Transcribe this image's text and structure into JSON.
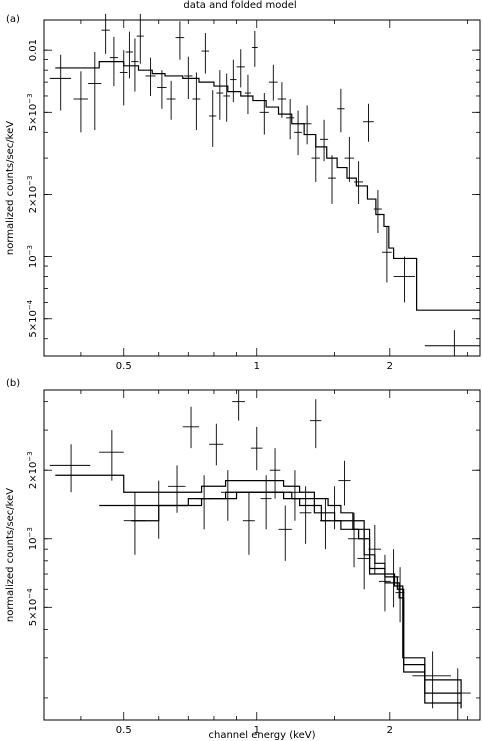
{
  "title": "data and folded model",
  "chart_data": [
    {
      "type": "scatter",
      "panel_label": "(a)",
      "xscale": "log",
      "yscale": "log",
      "xlim": [
        0.33,
        3.2
      ],
      "ylim": [
        0.00033,
        0.014
      ],
      "xlabel": "",
      "ylabel": "normalized counts/sec/keV",
      "x_ticks": [
        {
          "value": 0.5,
          "label": "0.5"
        },
        {
          "value": 1,
          "label": "1"
        },
        {
          "value": 2,
          "label": "2"
        }
      ],
      "y_ticks": [
        {
          "value": 0.0005,
          "mant": "5×10",
          "exp": "−4"
        },
        {
          "value": 0.001,
          "mant": "10",
          "exp": "−3"
        },
        {
          "value": 0.002,
          "mant": "2×10",
          "exp": "−3"
        },
        {
          "value": 0.005,
          "mant": "5×10",
          "exp": "−3"
        },
        {
          "value": 0.01,
          "mant": "0.01",
          "exp": ""
        }
      ],
      "points": [
        {
          "x": 0.36,
          "xlo": 0.34,
          "xhi": 0.38,
          "y": 0.0073,
          "ylo": 0.0051,
          "yhi": 0.0095
        },
        {
          "x": 0.4,
          "xlo": 0.385,
          "xhi": 0.415,
          "y": 0.0058,
          "ylo": 0.004,
          "yhi": 0.0079
        },
        {
          "x": 0.43,
          "xlo": 0.415,
          "xhi": 0.445,
          "y": 0.0069,
          "ylo": 0.0041,
          "yhi": 0.0098
        },
        {
          "x": 0.455,
          "xlo": 0.445,
          "xhi": 0.465,
          "y": 0.0125,
          "ylo": 0.0096,
          "yhi": 0.015
        },
        {
          "x": 0.475,
          "xlo": 0.465,
          "xhi": 0.485,
          "y": 0.0092,
          "ylo": 0.0067,
          "yhi": 0.0116
        },
        {
          "x": 0.5,
          "xlo": 0.49,
          "xhi": 0.51,
          "y": 0.0078,
          "ylo": 0.0054,
          "yhi": 0.01
        },
        {
          "x": 0.515,
          "xlo": 0.505,
          "xhi": 0.525,
          "y": 0.0098,
          "ylo": 0.0073,
          "yhi": 0.0123
        },
        {
          "x": 0.53,
          "xlo": 0.52,
          "xhi": 0.54,
          "y": 0.0088,
          "ylo": 0.0063,
          "yhi": 0.0114
        },
        {
          "x": 0.545,
          "xlo": 0.535,
          "xhi": 0.555,
          "y": 0.0117,
          "ylo": 0.0086,
          "yhi": 0.015
        },
        {
          "x": 0.575,
          "xlo": 0.56,
          "xhi": 0.59,
          "y": 0.0075,
          "ylo": 0.006,
          "yhi": 0.0092
        },
        {
          "x": 0.61,
          "xlo": 0.595,
          "xhi": 0.625,
          "y": 0.0066,
          "ylo": 0.0052,
          "yhi": 0.008
        },
        {
          "x": 0.64,
          "xlo": 0.625,
          "xhi": 0.655,
          "y": 0.0058,
          "ylo": 0.0046,
          "yhi": 0.0071
        },
        {
          "x": 0.67,
          "xlo": 0.655,
          "xhi": 0.685,
          "y": 0.0115,
          "ylo": 0.009,
          "yhi": 0.0138
        },
        {
          "x": 0.7,
          "xlo": 0.685,
          "xhi": 0.715,
          "y": 0.0075,
          "ylo": 0.0058,
          "yhi": 0.0093
        },
        {
          "x": 0.73,
          "xlo": 0.715,
          "xhi": 0.745,
          "y": 0.0058,
          "ylo": 0.0041,
          "yhi": 0.0078
        },
        {
          "x": 0.765,
          "xlo": 0.75,
          "xhi": 0.78,
          "y": 0.0099,
          "ylo": 0.0077,
          "yhi": 0.0121
        },
        {
          "x": 0.795,
          "xlo": 0.78,
          "xhi": 0.81,
          "y": 0.0048,
          "ylo": 0.0034,
          "yhi": 0.0064
        },
        {
          "x": 0.825,
          "xlo": 0.81,
          "xhi": 0.84,
          "y": 0.0062,
          "ylo": 0.0046,
          "yhi": 0.008
        },
        {
          "x": 0.855,
          "xlo": 0.84,
          "xhi": 0.87,
          "y": 0.006,
          "ylo": 0.0045,
          "yhi": 0.0077
        },
        {
          "x": 0.885,
          "xlo": 0.87,
          "xhi": 0.9,
          "y": 0.0072,
          "ylo": 0.0056,
          "yhi": 0.009
        },
        {
          "x": 0.92,
          "xlo": 0.9,
          "xhi": 0.94,
          "y": 0.0083,
          "ylo": 0.0066,
          "yhi": 0.0101
        },
        {
          "x": 0.955,
          "xlo": 0.94,
          "xhi": 0.97,
          "y": 0.0062,
          "ylo": 0.0049,
          "yhi": 0.0076
        },
        {
          "x": 0.99,
          "xlo": 0.975,
          "xhi": 1.005,
          "y": 0.0103,
          "ylo": 0.0083,
          "yhi": 0.0124
        },
        {
          "x": 1.04,
          "xlo": 1.015,
          "xhi": 1.065,
          "y": 0.005,
          "ylo": 0.0039,
          "yhi": 0.0062
        },
        {
          "x": 1.09,
          "xlo": 1.065,
          "xhi": 1.115,
          "y": 0.007,
          "ylo": 0.0057,
          "yhi": 0.0085
        },
        {
          "x": 1.14,
          "xlo": 1.115,
          "xhi": 1.165,
          "y": 0.0058,
          "ylo": 0.0047,
          "yhi": 0.007
        },
        {
          "x": 1.19,
          "xlo": 1.165,
          "xhi": 1.215,
          "y": 0.0047,
          "ylo": 0.0037,
          "yhi": 0.0058
        },
        {
          "x": 1.24,
          "xlo": 1.215,
          "xhi": 1.265,
          "y": 0.004,
          "ylo": 0.0031,
          "yhi": 0.0051
        },
        {
          "x": 1.3,
          "xlo": 1.27,
          "xhi": 1.33,
          "y": 0.0044,
          "ylo": 0.0035,
          "yhi": 0.0054
        },
        {
          "x": 1.36,
          "xlo": 1.33,
          "xhi": 1.39,
          "y": 0.003,
          "ylo": 0.0023,
          "yhi": 0.0038
        },
        {
          "x": 1.42,
          "xlo": 1.39,
          "xhi": 1.45,
          "y": 0.0037,
          "ylo": 0.0029,
          "yhi": 0.0046
        },
        {
          "x": 1.48,
          "xlo": 1.45,
          "xhi": 1.51,
          "y": 0.0024,
          "ylo": 0.0018,
          "yhi": 0.0031
        },
        {
          "x": 1.55,
          "xlo": 1.52,
          "xhi": 1.58,
          "y": 0.0052,
          "ylo": 0.004,
          "yhi": 0.0065
        },
        {
          "x": 1.62,
          "xlo": 1.58,
          "xhi": 1.66,
          "y": 0.003,
          "ylo": 0.0023,
          "yhi": 0.0038
        },
        {
          "x": 1.7,
          "xlo": 1.66,
          "xhi": 1.74,
          "y": 0.0023,
          "ylo": 0.0018,
          "yhi": 0.0029
        },
        {
          "x": 1.79,
          "xlo": 1.74,
          "xhi": 1.84,
          "y": 0.0045,
          "ylo": 0.0036,
          "yhi": 0.0055
        },
        {
          "x": 1.88,
          "xlo": 1.84,
          "xhi": 1.92,
          "y": 0.0017,
          "ylo": 0.0013,
          "yhi": 0.0021
        },
        {
          "x": 1.97,
          "xlo": 1.92,
          "xhi": 2.02,
          "y": 0.00105,
          "ylo": 0.00075,
          "yhi": 0.0014
        },
        {
          "x": 2.16,
          "xlo": 2.04,
          "xhi": 2.28,
          "y": 0.0008,
          "ylo": 0.0006,
          "yhi": 0.001
        },
        {
          "x": 2.8,
          "xlo": 2.4,
          "xhi": 3.2,
          "y": 0.00037,
          "ylo": 0.00033,
          "yhi": 0.00044
        }
      ],
      "models": [
        [
          [
            0.35,
            0.0082
          ],
          [
            0.44,
            0.0088
          ],
          [
            0.5,
            0.0084
          ],
          [
            0.54,
            0.008
          ],
          [
            0.58,
            0.0077
          ],
          [
            0.62,
            0.0075
          ],
          [
            0.68,
            0.0073
          ],
          [
            0.74,
            0.007
          ],
          [
            0.8,
            0.0067
          ],
          [
            0.86,
            0.0063
          ],
          [
            0.92,
            0.006
          ],
          [
            0.98,
            0.0057
          ],
          [
            1.05,
            0.0053
          ],
          [
            1.12,
            0.0049
          ],
          [
            1.2,
            0.0044
          ],
          [
            1.28,
            0.0039
          ],
          [
            1.36,
            0.0034
          ],
          [
            1.44,
            0.003
          ],
          [
            1.52,
            0.0027
          ],
          [
            1.6,
            0.0024
          ],
          [
            1.68,
            0.0022
          ],
          [
            1.78,
            0.0019
          ],
          [
            1.86,
            0.0016
          ],
          [
            1.94,
            0.0014
          ],
          [
            1.99,
            0.0011
          ],
          [
            2.04,
            0.00098
          ],
          [
            2.3,
            0.00055
          ],
          [
            3.2,
            0.00055
          ]
        ]
      ]
    },
    {
      "type": "scatter",
      "panel_label": "(b)",
      "xscale": "log",
      "yscale": "log",
      "xlim": [
        0.33,
        3.2
      ],
      "ylim": [
        0.00016,
        0.0045
      ],
      "xlabel": "channel energy (keV)",
      "ylabel": "normalized counts/sec/keV",
      "x_ticks": [
        {
          "value": 0.5,
          "label": "0.5"
        },
        {
          "value": 1,
          "label": "1"
        },
        {
          "value": 2,
          "label": "2"
        }
      ],
      "y_ticks": [
        {
          "value": 0.0005,
          "mant": "5×10",
          "exp": "−4"
        },
        {
          "value": 0.001,
          "mant": "10",
          "exp": "−3"
        },
        {
          "value": 0.002,
          "mant": "2×10",
          "exp": "−3"
        }
      ],
      "points": [
        {
          "x": 0.38,
          "xlo": 0.34,
          "xhi": 0.42,
          "y": 0.0021,
          "ylo": 0.0016,
          "yhi": 0.0026
        },
        {
          "x": 0.47,
          "xlo": 0.44,
          "xhi": 0.5,
          "y": 0.0024,
          "ylo": 0.0018,
          "yhi": 0.003
        },
        {
          "x": 0.53,
          "xlo": 0.5,
          "xhi": 0.56,
          "y": 0.0012,
          "ylo": 0.00085,
          "yhi": 0.0016
        },
        {
          "x": 0.6,
          "xlo": 0.56,
          "xhi": 0.64,
          "y": 0.0014,
          "ylo": 0.001,
          "yhi": 0.0018
        },
        {
          "x": 0.66,
          "xlo": 0.63,
          "xhi": 0.69,
          "y": 0.0017,
          "ylo": 0.0013,
          "yhi": 0.0021
        },
        {
          "x": 0.71,
          "xlo": 0.68,
          "xhi": 0.74,
          "y": 0.0031,
          "ylo": 0.0025,
          "yhi": 0.0038
        },
        {
          "x": 0.76,
          "xlo": 0.73,
          "xhi": 0.79,
          "y": 0.0015,
          "ylo": 0.0011,
          "yhi": 0.0019
        },
        {
          "x": 0.81,
          "xlo": 0.78,
          "xhi": 0.84,
          "y": 0.0026,
          "ylo": 0.0021,
          "yhi": 0.0032
        },
        {
          "x": 0.86,
          "xlo": 0.83,
          "xhi": 0.89,
          "y": 0.0016,
          "ylo": 0.0012,
          "yhi": 0.002
        },
        {
          "x": 0.91,
          "xlo": 0.88,
          "xhi": 0.94,
          "y": 0.004,
          "ylo": 0.0033,
          "yhi": 0.0045
        },
        {
          "x": 0.96,
          "xlo": 0.93,
          "xhi": 0.99,
          "y": 0.0012,
          "ylo": 0.00085,
          "yhi": 0.0016
        },
        {
          "x": 1.0,
          "xlo": 0.97,
          "xhi": 1.03,
          "y": 0.0025,
          "ylo": 0.002,
          "yhi": 0.0031
        },
        {
          "x": 1.05,
          "xlo": 1.02,
          "xhi": 1.08,
          "y": 0.0015,
          "ylo": 0.0011,
          "yhi": 0.0019
        },
        {
          "x": 1.1,
          "xlo": 1.07,
          "xhi": 1.13,
          "y": 0.002,
          "ylo": 0.0015,
          "yhi": 0.0025
        },
        {
          "x": 1.16,
          "xlo": 1.12,
          "xhi": 1.2,
          "y": 0.0011,
          "ylo": 0.0008,
          "yhi": 0.0014
        },
        {
          "x": 1.22,
          "xlo": 1.18,
          "xhi": 1.26,
          "y": 0.0016,
          "ylo": 0.0012,
          "yhi": 0.002
        },
        {
          "x": 1.29,
          "xlo": 1.25,
          "xhi": 1.33,
          "y": 0.0013,
          "ylo": 0.00095,
          "yhi": 0.0017
        },
        {
          "x": 1.36,
          "xlo": 1.32,
          "xhi": 1.4,
          "y": 0.0033,
          "ylo": 0.0025,
          "yhi": 0.0041
        },
        {
          "x": 1.43,
          "xlo": 1.39,
          "xhi": 1.47,
          "y": 0.0012,
          "ylo": 0.0009,
          "yhi": 0.0015
        },
        {
          "x": 1.5,
          "xlo": 1.45,
          "xhi": 1.55,
          "y": 0.0014,
          "ylo": 0.0011,
          "yhi": 0.0017
        },
        {
          "x": 1.58,
          "xlo": 1.53,
          "xhi": 1.63,
          "y": 0.0018,
          "ylo": 0.0014,
          "yhi": 0.0022
        },
        {
          "x": 1.66,
          "xlo": 1.61,
          "xhi": 1.71,
          "y": 0.001,
          "ylo": 0.00075,
          "yhi": 0.0013
        },
        {
          "x": 1.75,
          "xlo": 1.69,
          "xhi": 1.81,
          "y": 0.00082,
          "ylo": 0.0006,
          "yhi": 0.0011
        },
        {
          "x": 1.85,
          "xlo": 1.79,
          "xhi": 1.91,
          "y": 0.0009,
          "ylo": 0.0007,
          "yhi": 0.00115
        },
        {
          "x": 1.95,
          "xlo": 1.89,
          "xhi": 2.01,
          "y": 0.00065,
          "ylo": 0.00048,
          "yhi": 0.00085
        },
        {
          "x": 2.04,
          "xlo": 1.98,
          "xhi": 2.1,
          "y": 0.00068,
          "ylo": 0.0005,
          "yhi": 0.0009
        },
        {
          "x": 2.11,
          "xlo": 2.06,
          "xhi": 2.16,
          "y": 0.00058,
          "ylo": 0.00043,
          "yhi": 0.00075
        },
        {
          "x": 2.5,
          "xlo": 2.25,
          "xhi": 2.75,
          "y": 0.00025,
          "ylo": 0.00018,
          "yhi": 0.00032
        },
        {
          "x": 2.85,
          "xlo": 2.65,
          "xhi": 3.05,
          "y": 0.00021,
          "ylo": 0.00016,
          "yhi": 0.00027
        }
      ],
      "models": [
        [
          [
            0.35,
            0.0019
          ],
          [
            0.47,
            0.0019
          ],
          [
            0.5,
            0.0016
          ],
          [
            0.65,
            0.0016
          ],
          [
            0.75,
            0.0017
          ],
          [
            0.85,
            0.0018
          ],
          [
            0.95,
            0.0018
          ],
          [
            1.05,
            0.0018
          ],
          [
            1.15,
            0.0017
          ],
          [
            1.25,
            0.0016
          ],
          [
            1.35,
            0.0015
          ],
          [
            1.45,
            0.0014
          ],
          [
            1.55,
            0.0013
          ],
          [
            1.65,
            0.0012
          ],
          [
            1.75,
            0.00085
          ],
          [
            1.85,
            0.00078
          ],
          [
            1.95,
            0.0007
          ],
          [
            2.05,
            0.00062
          ],
          [
            2.14,
            0.0003
          ],
          [
            2.4,
            0.00024
          ],
          [
            2.9,
            0.00021
          ]
        ],
        [
          [
            0.44,
            0.0014
          ],
          [
            0.56,
            0.0014
          ],
          [
            0.7,
            0.0015
          ],
          [
            0.85,
            0.0016
          ],
          [
            1.0,
            0.0016
          ],
          [
            1.15,
            0.0015
          ],
          [
            1.25,
            0.0014
          ],
          [
            1.4,
            0.0012
          ],
          [
            1.55,
            0.0011
          ],
          [
            1.7,
            0.001
          ],
          [
            1.8,
            0.00074
          ],
          [
            1.95,
            0.00068
          ],
          [
            2.08,
            0.0006
          ],
          [
            2.15,
            0.00028
          ],
          [
            2.4,
            0.00021
          ],
          [
            2.9,
            0.00019
          ]
        ],
        [
          [
            0.52,
            0.0012
          ],
          [
            0.6,
            0.0014
          ],
          [
            0.75,
            0.0015
          ],
          [
            0.9,
            0.0016
          ],
          [
            1.05,
            0.0016
          ],
          [
            1.2,
            0.0015
          ],
          [
            1.35,
            0.0013
          ],
          [
            1.5,
            0.0012
          ],
          [
            1.65,
            0.0011
          ],
          [
            1.8,
            0.0007
          ],
          [
            1.95,
            0.00064
          ],
          [
            2.1,
            0.00055
          ],
          [
            2.15,
            0.00026
          ],
          [
            2.4,
            0.00019
          ],
          [
            2.9,
            0.00018
          ]
        ]
      ]
    }
  ]
}
